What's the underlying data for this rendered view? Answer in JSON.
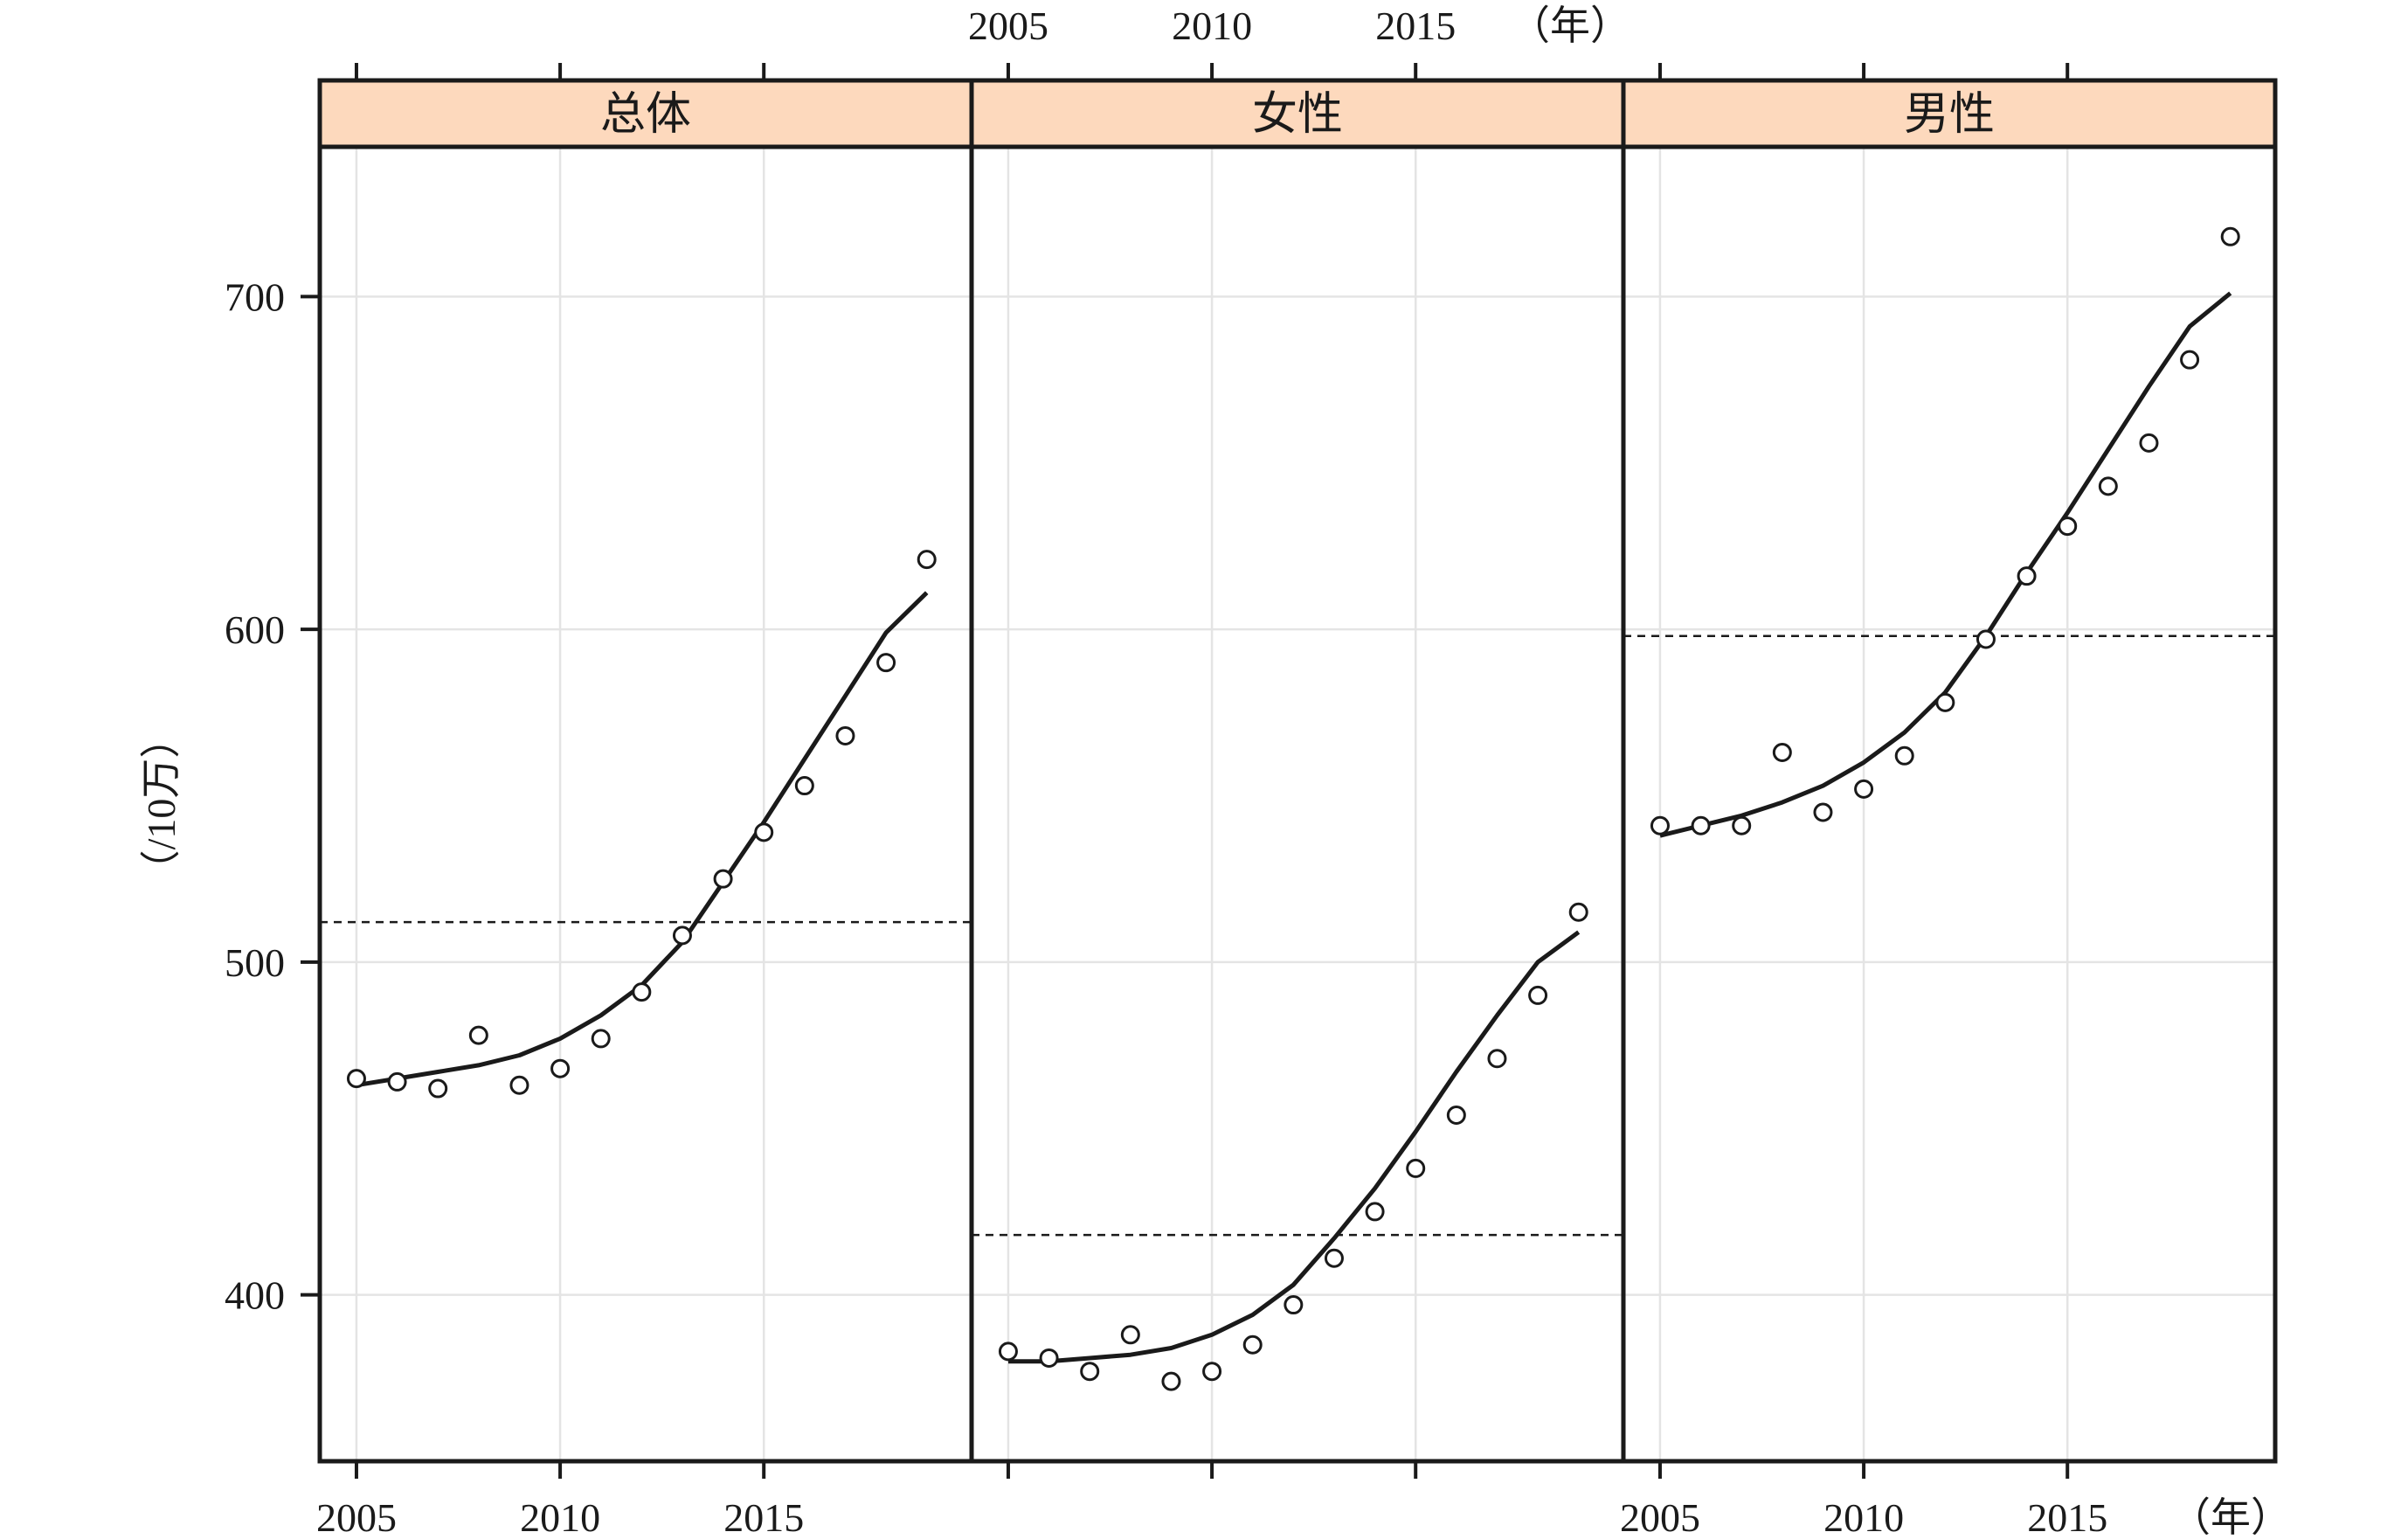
{
  "chart_data": {
    "type": "scatter",
    "layout": "three panels side by side, shared y axis",
    "x_ticks": [
      2005,
      2010,
      2015
    ],
    "x_unit_label": "（年）",
    "ylabel": "（/10万）",
    "y_ticks": [
      400,
      500,
      600,
      700
    ],
    "ylim": [
      350,
      745
    ],
    "xlim": [
      2004.1,
      2020.1
    ],
    "grid": true,
    "x": [
      2005,
      2006,
      2007,
      2008,
      2009,
      2010,
      2011,
      2012,
      2013,
      2014,
      2015,
      2016,
      2017,
      2018,
      2019
    ],
    "panels": [
      {
        "name": "总体",
        "color": "#fdd9bd",
        "points": [
          465,
          464,
          462,
          478,
          463,
          468,
          477,
          491,
          508,
          525,
          539,
          553,
          568,
          590,
          621
        ],
        "fit": [
          463,
          465,
          467,
          469,
          472,
          477,
          484,
          493,
          506,
          524,
          542,
          561,
          580,
          599,
          611
        ],
        "reference_line": 512
      },
      {
        "name": "女性",
        "color": "#fdd9bd",
        "points": [
          383,
          381,
          377,
          388,
          374,
          377,
          385,
          397,
          411,
          425,
          438,
          454,
          471,
          490,
          515
        ],
        "fit": [
          380,
          380,
          381,
          382,
          384,
          388,
          394,
          403,
          417,
          432,
          449,
          467,
          484,
          500,
          509
        ],
        "reference_line": 418
      },
      {
        "name": "男性",
        "color": "#fdd9bd",
        "points": [
          541,
          541,
          541,
          563,
          545,
          552,
          562,
          578,
          597,
          616,
          631,
          643,
          656,
          681,
          718
        ],
        "fit": [
          538,
          541,
          544,
          548,
          553,
          560,
          569,
          581,
          598,
          617,
          635,
          654,
          673,
          691,
          701
        ],
        "reference_line": 598
      }
    ]
  }
}
